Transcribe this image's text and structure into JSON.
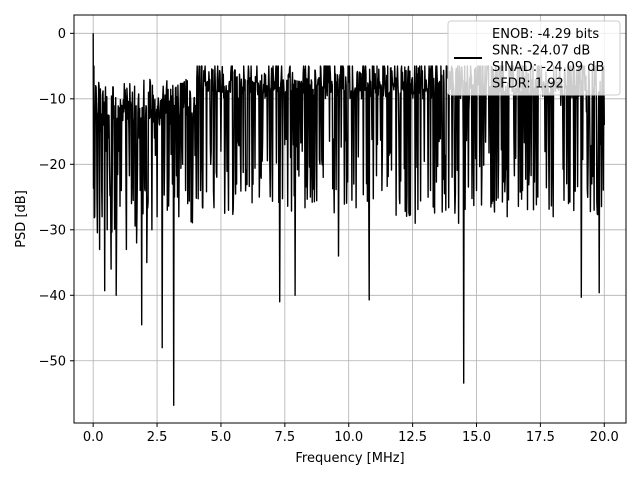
{
  "chart_data": {
    "type": "line",
    "title": "",
    "xlabel": "Frequency [MHz]",
    "ylabel": "PSD [dB]",
    "xlim": [
      -0.75,
      20.85
    ],
    "ylim": [
      -59.5,
      2.8
    ],
    "xticks": [
      0.0,
      2.5,
      5.0,
      7.5,
      10.0,
      12.5,
      15.0,
      17.5,
      20.0
    ],
    "xtick_labels": [
      "0.0",
      "2.5",
      "5.0",
      "7.5",
      "10.0",
      "12.5",
      "15.0",
      "17.5",
      "20.0"
    ],
    "yticks": [
      0,
      -10,
      -20,
      -30,
      -40,
      -50
    ],
    "ytick_labels": [
      "0",
      "−10",
      "−20",
      "−30",
      "−40",
      "−50"
    ],
    "grid": true,
    "legend": {
      "placement": "top-right",
      "lines": [
        "ENOB: -4.29 bits",
        "SNR: -24.07 dB",
        "SINAD: -24.09 dB",
        "SFDR: 1.92"
      ]
    },
    "series": [
      {
        "color": "#000000",
        "description": "dense noisy spectrum across 0-20 MHz",
        "points": [
          [
            0.0,
            0.0
          ],
          [
            0.03,
            -5.0
          ],
          [
            0.06,
            -28.0
          ],
          [
            0.1,
            -8.0
          ],
          [
            0.15,
            -25.0
          ],
          [
            0.2,
            -12.0
          ],
          [
            0.25,
            -33.0
          ],
          [
            0.3,
            -15.0
          ],
          [
            0.35,
            -28.0
          ],
          [
            0.4,
            -14.0
          ],
          [
            0.45,
            -39.3
          ],
          [
            0.5,
            -18.0
          ],
          [
            0.55,
            -30.0
          ],
          [
            0.6,
            -16.0
          ],
          [
            0.7,
            -36.0
          ],
          [
            0.8,
            -13.0
          ],
          [
            0.9,
            -40.0
          ],
          [
            1.0,
            -18.0
          ],
          [
            1.1,
            -24.0
          ],
          [
            1.2,
            -12.0
          ],
          [
            1.3,
            -33.0
          ],
          [
            1.4,
            -15.0
          ],
          [
            1.5,
            -26.0
          ],
          [
            1.6,
            -13.0
          ],
          [
            1.7,
            -32.0
          ],
          [
            1.8,
            -16.0
          ],
          [
            1.9,
            -44.5
          ],
          [
            2.0,
            -17.0
          ],
          [
            2.1,
            -35.0
          ],
          [
            2.2,
            -13.0
          ],
          [
            2.3,
            -30.0
          ],
          [
            2.4,
            -16.0
          ],
          [
            2.5,
            -28.0
          ],
          [
            2.6,
            -14.0
          ],
          [
            2.7,
            -48.0
          ],
          [
            2.8,
            -18.0
          ],
          [
            2.9,
            -27.0
          ],
          [
            3.0,
            -13.0
          ],
          [
            3.1,
            -23.0
          ],
          [
            3.15,
            -56.8
          ],
          [
            3.2,
            -16.0
          ],
          [
            3.3,
            -25.0
          ],
          [
            3.4,
            -12.0
          ],
          [
            3.5,
            -20.0
          ],
          [
            3.6,
            -10.0
          ],
          [
            3.7,
            -26.0
          ],
          [
            3.8,
            -9.0
          ],
          [
            3.9,
            -22.0
          ],
          [
            4.0,
            -11.0
          ],
          [
            4.2,
            -24.0
          ],
          [
            4.4,
            -8.0
          ],
          [
            4.6,
            -20.0
          ],
          [
            4.8,
            -9.0
          ],
          [
            5.0,
            -18.0
          ],
          [
            5.2,
            -8.0
          ],
          [
            5.5,
            -23.0
          ],
          [
            5.8,
            -7.0
          ],
          [
            6.0,
            -22.0
          ],
          [
            6.2,
            -9.0
          ],
          [
            6.5,
            -25.0
          ],
          [
            6.8,
            -8.0
          ],
          [
            7.0,
            -21.0
          ],
          [
            7.3,
            -41.0
          ],
          [
            7.5,
            -17.0
          ],
          [
            7.8,
            -6.0
          ],
          [
            7.9,
            -40.0
          ],
          [
            8.2,
            -10.0
          ],
          [
            8.5,
            -25.0
          ],
          [
            8.8,
            -7.0
          ],
          [
            9.0,
            -22.0
          ],
          [
            9.3,
            -9.0
          ],
          [
            9.6,
            -34.0
          ],
          [
            9.9,
            -8.0
          ],
          [
            10.2,
            -23.0
          ],
          [
            10.5,
            -10.0
          ],
          [
            10.8,
            -40.7
          ],
          [
            11.0,
            -7.0
          ],
          [
            11.3,
            -24.0
          ],
          [
            11.6,
            -9.0
          ],
          [
            12.0,
            -26.0
          ],
          [
            12.3,
            -8.0
          ],
          [
            12.6,
            -29.0
          ],
          [
            12.9,
            -10.0
          ],
          [
            13.2,
            -24.0
          ],
          [
            13.5,
            -9.0
          ],
          [
            13.8,
            -27.0
          ],
          [
            14.1,
            -8.0
          ],
          [
            14.3,
            -29.0
          ],
          [
            14.5,
            -53.4
          ],
          [
            14.7,
            -12.0
          ],
          [
            15.0,
            -24.0
          ],
          [
            15.3,
            -8.0
          ],
          [
            15.6,
            -26.0
          ],
          [
            15.9,
            -9.0
          ],
          [
            16.2,
            -28.0
          ],
          [
            16.5,
            -10.0
          ],
          [
            16.8,
            -24.0
          ],
          [
            17.1,
            -9.0
          ],
          [
            17.4,
            -25.0
          ],
          [
            17.7,
            -10.0
          ],
          [
            18.0,
            -28.0
          ],
          [
            18.3,
            -11.0
          ],
          [
            18.6,
            -26.0
          ],
          [
            18.9,
            -10.0
          ],
          [
            19.1,
            -40.3
          ],
          [
            19.3,
            -12.0
          ],
          [
            19.6,
            -27.0
          ],
          [
            19.8,
            -39.6
          ],
          [
            20.0,
            -14.0
          ]
        ]
      }
    ]
  }
}
